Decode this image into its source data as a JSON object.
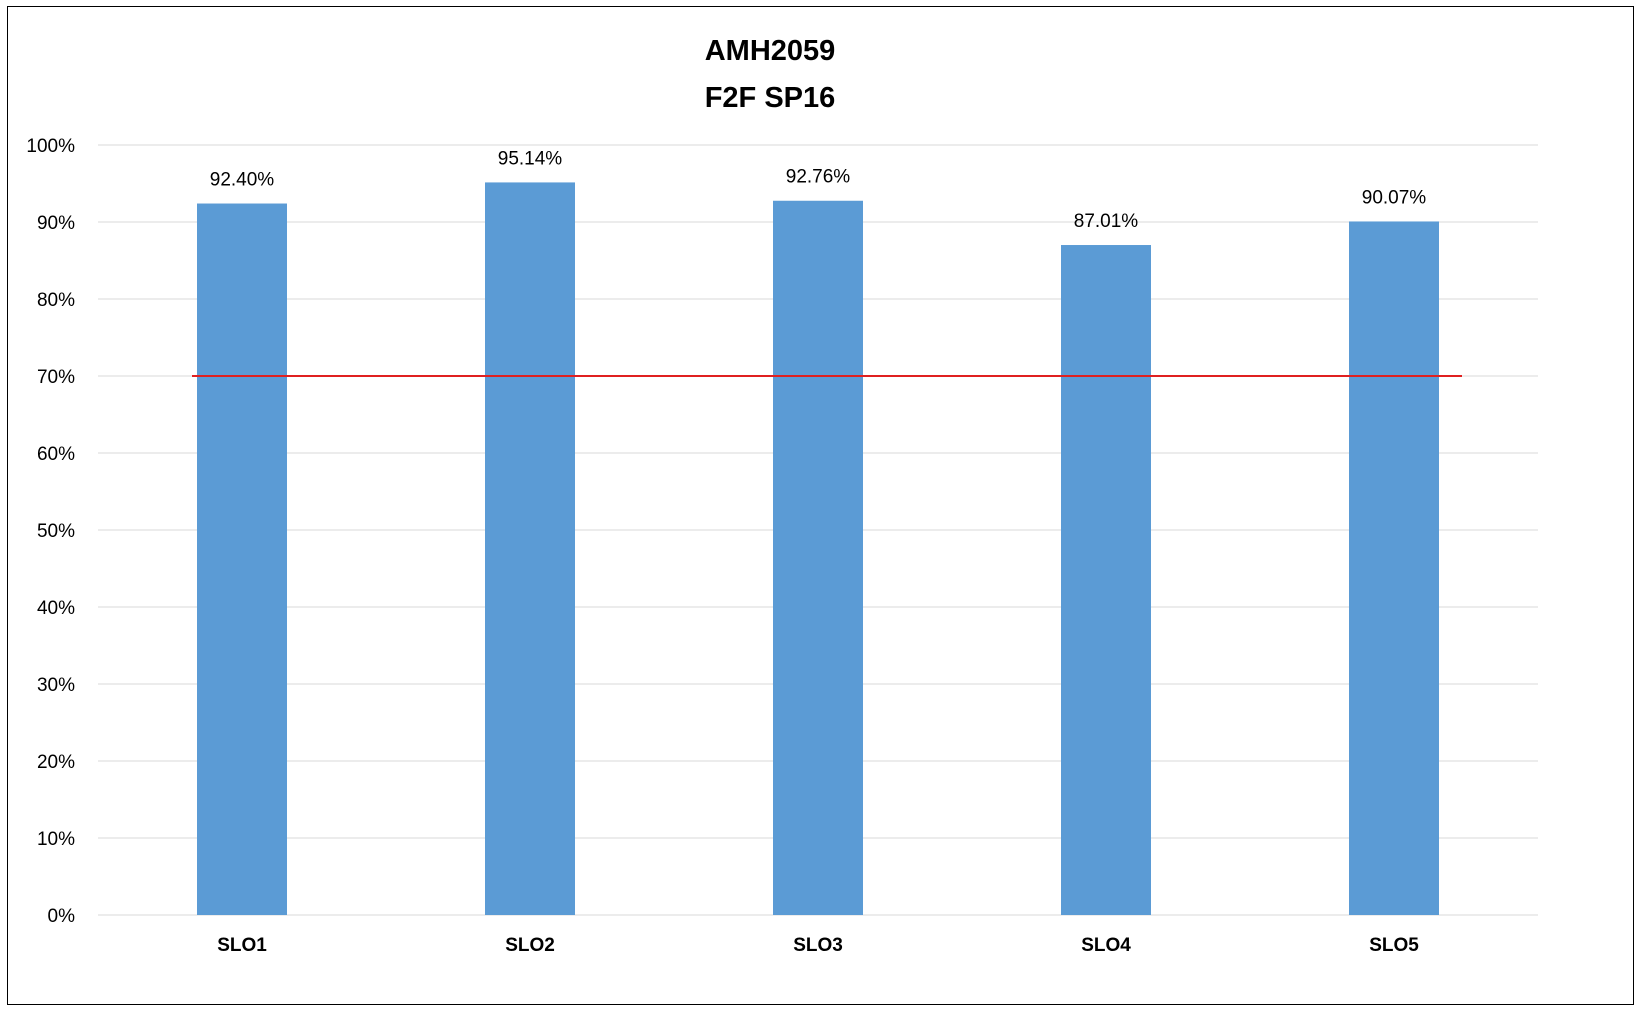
{
  "chart_data": {
    "type": "bar",
    "title": "AMH2059",
    "subtitle": "F2F SP16",
    "categories": [
      "SLO1",
      "SLO2",
      "SLO3",
      "SLO4",
      "SLO5"
    ],
    "values": [
      92.4,
      95.14,
      92.76,
      87.01,
      90.07
    ],
    "value_labels": [
      "92.40%",
      "95.14%",
      "92.76%",
      "87.01%",
      "90.07%"
    ],
    "y_ticks": [
      0,
      10,
      20,
      30,
      40,
      50,
      60,
      70,
      80,
      90,
      100
    ],
    "y_tick_labels": [
      "0%",
      "10%",
      "20%",
      "30%",
      "40%",
      "50%",
      "60%",
      "70%",
      "80%",
      "90%",
      "100%"
    ],
    "ylim": [
      0,
      100
    ],
    "xlabel": "",
    "ylabel": "",
    "grid": true,
    "reference_line": {
      "value": 70,
      "color": "#e02020"
    },
    "colors": {
      "bar": "#5b9bd5",
      "grid": "#d9d9d9",
      "reference": "#e02020"
    }
  }
}
